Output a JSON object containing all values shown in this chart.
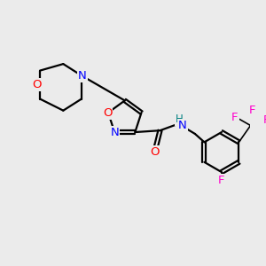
{
  "bg_color": "#ebebeb",
  "bond_color": "#000000",
  "atom_colors": {
    "O": "#ff0000",
    "N": "#0000ff",
    "F": "#ff00cc",
    "NH": "#008080",
    "C": "#000000"
  },
  "figsize": [
    3.0,
    3.0
  ],
  "dpi": 100
}
